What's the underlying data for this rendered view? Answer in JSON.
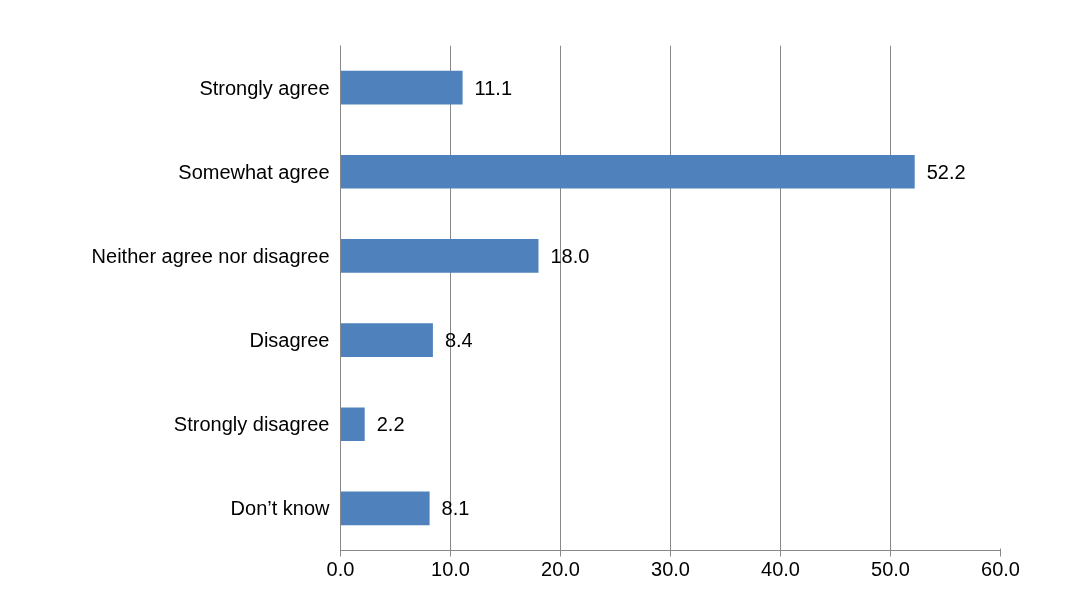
{
  "chart_data": {
    "type": "bar",
    "orientation": "horizontal",
    "categories": [
      "Strongly agree",
      "Somewhat agree",
      "Neither agree nor disagree",
      "Disagree",
      "Strongly disagree",
      "Don’t know"
    ],
    "values": [
      11.1,
      52.2,
      18.0,
      8.4,
      2.2,
      8.1
    ],
    "value_labels": [
      "11.1",
      "52.2",
      "18.0",
      "8.4",
      "2.2",
      "8.1"
    ],
    "color": "#4f81bd",
    "xlim": [
      0,
      60
    ],
    "xticks": [
      {
        "value": 0,
        "label": "0.0"
      },
      {
        "value": 10,
        "label": "10.0"
      },
      {
        "value": 20,
        "label": "20.0"
      },
      {
        "value": 30,
        "label": "30.0"
      },
      {
        "value": 40,
        "label": "40.0"
      },
      {
        "value": 50,
        "label": "50.0"
      },
      {
        "value": 60,
        "label": "60.0"
      }
    ],
    "grid": "x"
  }
}
